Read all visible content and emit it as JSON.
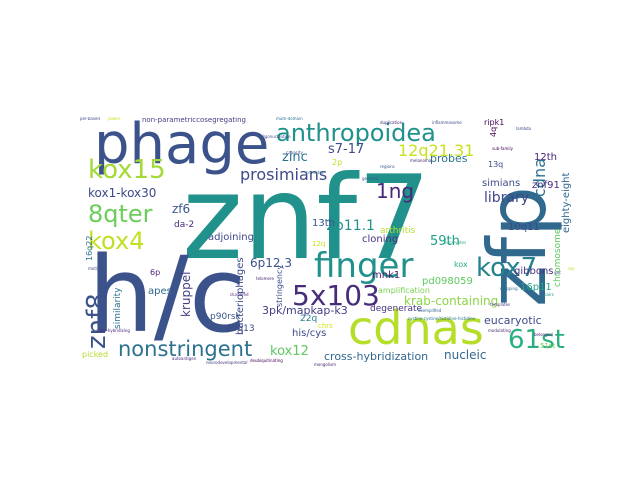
{
  "words": [
    {
      "text": "znf7",
      "color": "#21918c"
    },
    {
      "text": "h/c",
      "color": "#3b528b"
    },
    {
      "text": "zfp",
      "color": "#31688e"
    },
    {
      "text": "phage",
      "color": "#3b528b"
    },
    {
      "text": "cdnas",
      "color": "#b5de2b"
    },
    {
      "text": "finger",
      "color": "#21918c"
    },
    {
      "text": "anthropoidea",
      "color": "#21918c"
    },
    {
      "text": "5x103",
      "color": "#472c7a"
    },
    {
      "text": "kox15",
      "color": "#a2da37"
    },
    {
      "text": "kox4",
      "color": "#c2df23"
    },
    {
      "text": "8qter",
      "color": "#6ccd5a"
    },
    {
      "text": "kox7",
      "color": "#26828e"
    },
    {
      "text": "61st",
      "color": "#2ab07f"
    },
    {
      "text": "znf8",
      "color": "#3b528b"
    },
    {
      "text": "nonstringent",
      "color": "#2c728e"
    },
    {
      "text": "1ng",
      "color": "#482878"
    },
    {
      "text": "prosimians",
      "color": "#3e4a89"
    },
    {
      "text": "12q21.31",
      "color": "#cae11f"
    },
    {
      "text": "cdna",
      "color": "#2c728e"
    },
    {
      "text": "zinc",
      "color": "#2c728e"
    },
    {
      "text": "s7-17",
      "color": "#3e4a89"
    },
    {
      "text": "2p11.1",
      "color": "#21918c"
    },
    {
      "text": "library",
      "color": "#404688"
    },
    {
      "text": "kox1-kox30",
      "color": "#3e4a89"
    },
    {
      "text": "zf6",
      "color": "#38598c"
    },
    {
      "text": "59th",
      "color": "#1f9f88"
    },
    {
      "text": "krab-containing",
      "color": "#8bd646"
    },
    {
      "text": "6p12.3",
      "color": "#3b528b"
    },
    {
      "text": "kox12",
      "color": "#5ec962"
    },
    {
      "text": "3pk/mapkap-k3",
      "color": "#433e85"
    },
    {
      "text": "eucaryotic",
      "color": "#3e4a89"
    },
    {
      "text": "cross-hybridization",
      "color": "#31688e"
    },
    {
      "text": "nucleic",
      "color": "#31688e"
    },
    {
      "text": "kruppel",
      "color": "#433e85"
    },
    {
      "text": "bacteriophages",
      "color": "#3e4a89"
    },
    {
      "text": "13th",
      "color": "#39568c"
    },
    {
      "text": "cloning",
      "color": "#46337f"
    },
    {
      "text": "mnk1",
      "color": "#481f70"
    },
    {
      "text": "apes",
      "color": "#31688e"
    },
    {
      "text": "similarity",
      "color": "#2d708e"
    },
    {
      "text": "adjoining",
      "color": "#3e4a89"
    },
    {
      "text": "probes",
      "color": "#2c728e"
    },
    {
      "text": "simians",
      "color": "#3e4a89"
    },
    {
      "text": "znf91",
      "color": "#472c7a"
    },
    {
      "text": "eighty-eight",
      "color": "#31688e"
    },
    {
      "text": "chromosome",
      "color": "#5ec962"
    },
    {
      "text": "12th",
      "color": "#482475"
    },
    {
      "text": "gibbons",
      "color": "#46337f"
    },
    {
      "text": "10q11",
      "color": "#3e4a89"
    },
    {
      "text": "16p11",
      "color": "#22a884"
    },
    {
      "text": "degenerate",
      "color": "#453781"
    },
    {
      "text": "his/cys",
      "color": "#3e4a89"
    },
    {
      "text": "20q13",
      "color": "#3e4a89"
    },
    {
      "text": "22q",
      "color": "#26828e"
    },
    {
      "text": "p90rsk",
      "color": "#39568c"
    },
    {
      "text": "stringency",
      "color": "#3b528b"
    },
    {
      "text": "da-2",
      "color": "#472c7a"
    },
    {
      "text": "6p",
      "color": "#481f70"
    },
    {
      "text": "16q22",
      "color": "#2c728e"
    },
    {
      "text": "picked",
      "color": "#b5de2b"
    },
    {
      "text": "arthritis",
      "color": "#b5de2b"
    },
    {
      "text": "pd098059",
      "color": "#5ec962"
    },
    {
      "text": "amplification",
      "color": "#7ad151"
    },
    {
      "text": "non-parametriccosegregating",
      "color": "#433e85"
    },
    {
      "text": "ripk1",
      "color": "#440154"
    },
    {
      "text": "13q",
      "color": "#3e4a89"
    },
    {
      "text": "4q",
      "color": "#440154"
    },
    {
      "text": "2p",
      "color": "#c2df23"
    },
    {
      "text": "kox",
      "color": "#2ab07f"
    },
    {
      "text": "12q",
      "color": "#cae11f"
    },
    {
      "text": "chrs",
      "color": "#d8e219"
    },
    {
      "text": "51st",
      "color": "#6ccd5a"
    },
    {
      "text": "sub-family",
      "color": "#440154"
    },
    {
      "text": "duplication",
      "color": "#481f70"
    },
    {
      "text": "inflammasome",
      "color": "#3e4a89"
    },
    {
      "text": "multi-domain",
      "color": "#2c728e"
    },
    {
      "text": "melanoma",
      "color": "#482475"
    },
    {
      "text": "templates",
      "color": "#443983"
    },
    {
      "text": "exemplified",
      "color": "#31688e"
    },
    {
      "text": "cystine-cystine/histidine-histidine",
      "color": "#2c728e"
    },
    {
      "text": "modulating",
      "color": "#482878"
    },
    {
      "text": "belonged",
      "color": "#482475"
    },
    {
      "text": "cross-hybridizing",
      "color": "#482878"
    },
    {
      "text": "deubiquitinating",
      "color": "#440154"
    },
    {
      "text": "mongolism",
      "color": "#482475"
    },
    {
      "text": "autoantigen",
      "color": "#482878"
    },
    {
      "text": "neurodevelopmental",
      "color": "#453781"
    },
    {
      "text": "per-based",
      "color": "#3e4a89"
    },
    {
      "text": "power",
      "color": "#cae11f"
    },
    {
      "text": "oligonucleotide",
      "color": "#3b528b"
    },
    {
      "text": "capacity",
      "color": "#3e4a89"
    },
    {
      "text": "pairs",
      "color": "#21918c"
    },
    {
      "text": "ssp",
      "color": "#bddf26"
    },
    {
      "text": "yac",
      "color": "#3e4a89"
    },
    {
      "text": "lambda",
      "color": "#3e4a89"
    },
    {
      "text": "eucaryotes",
      "color": "#22a884"
    },
    {
      "text": "genomic",
      "color": "#3b528b"
    },
    {
      "text": "mapping",
      "color": "#2c728e"
    },
    {
      "text": "telomere",
      "color": "#481f70"
    },
    {
      "text": "clustered",
      "color": "#482878"
    },
    {
      "text": "regions",
      "color": "#38598c"
    },
    {
      "text": "motif",
      "color": "#3e4a89"
    },
    {
      "text": "primates",
      "color": "#31688e"
    }
  ]
}
